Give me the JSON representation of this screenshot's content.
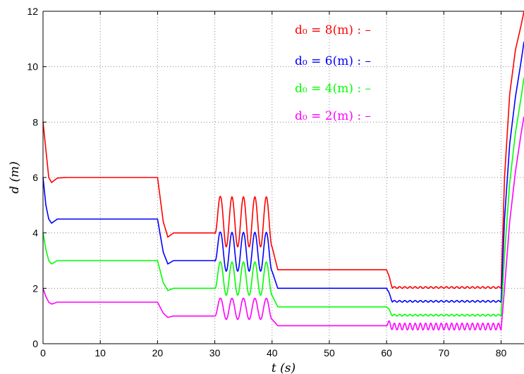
{
  "chart_data": {
    "type": "line",
    "xlabel": "t (s)",
    "ylabel": "d (m)",
    "xlim": [
      0,
      84
    ],
    "ylim": [
      0,
      12
    ],
    "xticks": [
      0,
      10,
      20,
      30,
      40,
      50,
      60,
      70,
      80
    ],
    "yticks": [
      0,
      2,
      4,
      6,
      8,
      10,
      12
    ],
    "grid": true,
    "legend_position": "top-center",
    "series": [
      {
        "name": "d0 = 8(m) : –",
        "legend": "d₀ = 8(m) : –",
        "color": "#ff0000",
        "x": [
          0,
          0.5,
          1.0,
          1.5,
          2.5,
          4,
          20,
          21.0,
          21.8,
          22.8,
          24,
          30,
          31,
          40,
          41,
          60,
          61,
          80,
          80.6,
          81.5,
          82.5,
          83.5,
          84
        ],
        "y": [
          8,
          7.0,
          6.0,
          5.82,
          5.98,
          6.0,
          6.0,
          4.4,
          3.85,
          4.0,
          4.0,
          4.0,
          3.5,
          3.5,
          2.67,
          2.67,
          2.0,
          2.0,
          6.0,
          9.0,
          10.6,
          11.5,
          12.0
        ]
      },
      {
        "name": "d0 = 6(m) : –",
        "legend": "d₀ = 6(m) : –",
        "color": "#0000ff",
        "x": [
          0,
          0.5,
          1.0,
          1.5,
          2.5,
          4,
          20,
          21.0,
          21.8,
          22.8,
          24,
          30,
          31,
          40,
          41,
          60,
          61,
          80,
          80.6,
          81.5,
          82.5,
          83.5,
          84
        ],
        "y": [
          6,
          5.0,
          4.5,
          4.35,
          4.5,
          4.5,
          4.5,
          3.3,
          2.88,
          3.0,
          3.0,
          3.0,
          2.62,
          2.62,
          2.0,
          2.0,
          1.5,
          1.5,
          4.5,
          7.2,
          8.9,
          10.2,
          10.9
        ]
      },
      {
        "name": "d0 = 4(m) : –",
        "legend": "d₀ = 4(m) : –",
        "color": "#00ff00",
        "x": [
          0,
          0.5,
          1.0,
          1.5,
          2.5,
          4,
          20,
          21.0,
          21.8,
          22.8,
          24,
          30,
          31,
          40,
          41,
          60,
          61,
          80,
          80.6,
          81.5,
          82.5,
          83.5,
          84
        ],
        "y": [
          4,
          3.4,
          3.0,
          2.88,
          3.0,
          3.0,
          3.0,
          2.2,
          1.92,
          2.0,
          2.0,
          2.0,
          1.75,
          1.75,
          1.33,
          1.33,
          1.0,
          1.0,
          3.2,
          5.8,
          7.6,
          8.9,
          9.6
        ]
      },
      {
        "name": "d0 = 2(m) : –",
        "legend": "d₀ = 2(m) : –",
        "color": "#ff00ff",
        "x": [
          0,
          0.5,
          1.0,
          1.5,
          2.5,
          4,
          20,
          21.0,
          21.8,
          22.8,
          24,
          30,
          31,
          40,
          41,
          60,
          61,
          80,
          80.6,
          81.5,
          82.5,
          83.5,
          84
        ],
        "y": [
          2,
          1.7,
          1.5,
          1.43,
          1.5,
          1.5,
          1.5,
          1.1,
          0.95,
          1.0,
          1.0,
          1.0,
          0.88,
          0.88,
          0.65,
          0.65,
          0.5,
          0.5,
          2.0,
          4.4,
          6.2,
          7.6,
          8.2
        ]
      }
    ],
    "oscillation_segments": [
      {
        "x_range": [
          30,
          40
        ],
        "cycles": 5,
        "amplitudes": [
          0.9,
          0.7,
          0.6,
          0.38
        ]
      },
      {
        "x_range": [
          60,
          80
        ],
        "cycles": 22,
        "amplitudes": [
          0.03,
          0.03,
          0.03,
          0.12
        ]
      }
    ]
  }
}
